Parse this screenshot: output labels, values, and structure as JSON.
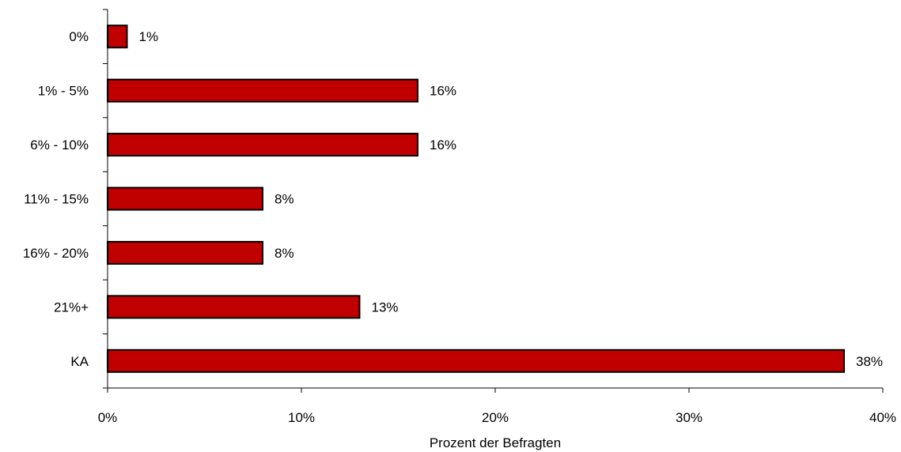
{
  "chart_data": {
    "type": "bar",
    "orientation": "horizontal",
    "categories": [
      "0%",
      "1% - 5%",
      "6% - 10%",
      "11% - 15%",
      "16% - 20%",
      "21%+",
      "KA"
    ],
    "values": [
      1,
      16,
      16,
      8,
      8,
      13,
      38
    ],
    "value_labels": [
      "1%",
      "16%",
      "16%",
      "8%",
      "8%",
      "13%",
      "38%"
    ],
    "xlabel": "Prozent der Befragten",
    "ylabel": "",
    "xlim": [
      0,
      40
    ],
    "xticks": [
      0,
      10,
      20,
      30,
      40
    ],
    "xtick_labels": [
      "0%",
      "10%",
      "20%",
      "30%",
      "40%"
    ],
    "grid": false,
    "legend": "none",
    "bar_color": "#C00000",
    "bar_outline_color": "#000000"
  }
}
